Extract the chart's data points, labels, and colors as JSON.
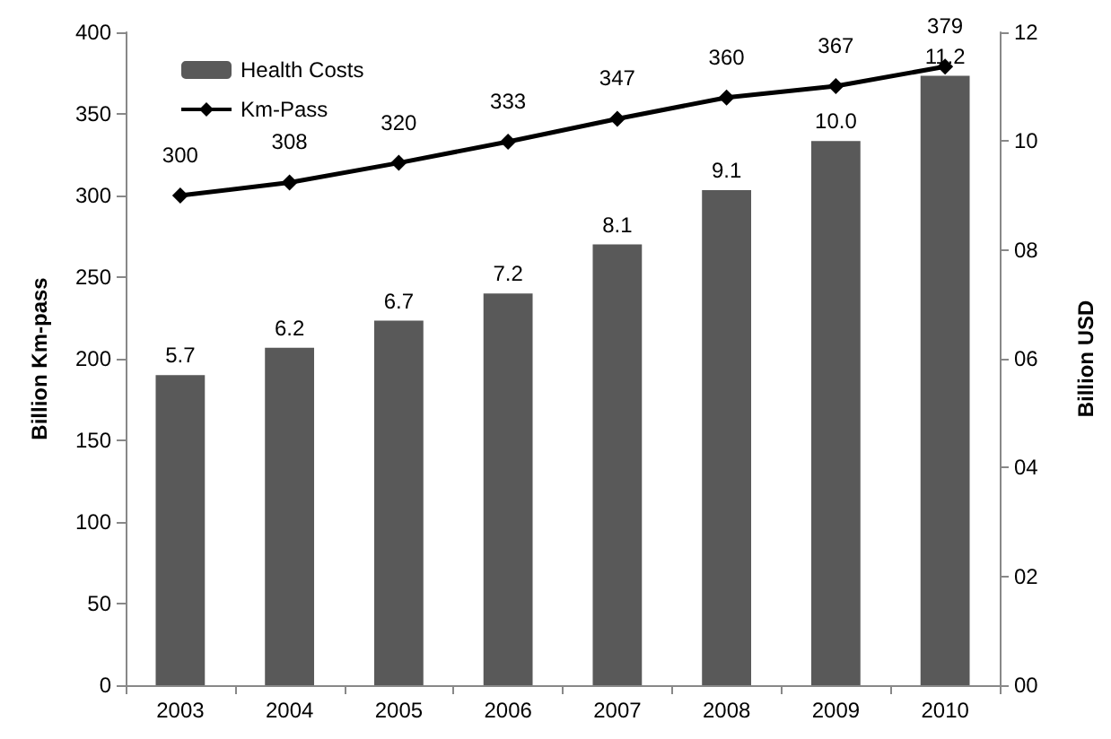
{
  "chart_data": {
    "type": "bar",
    "categories": [
      "2003",
      "2004",
      "2005",
      "2006",
      "2007",
      "2008",
      "2009",
      "2010"
    ],
    "ylabel": "Billion Km-pass",
    "y2label": "Billion USD",
    "ylim": [
      0,
      400
    ],
    "yticks": [
      0,
      50,
      100,
      150,
      200,
      250,
      300,
      350,
      400
    ],
    "y2lim": [
      0,
      12
    ],
    "y2ticks": [
      {
        "value": 0,
        "label": "00"
      },
      {
        "value": 2,
        "label": "02"
      },
      {
        "value": 4,
        "label": "04"
      },
      {
        "value": 6,
        "label": "06"
      },
      {
        "value": 8,
        "label": "08"
      },
      10,
      12
    ],
    "legend": "top left",
    "grid": false,
    "series": [
      {
        "name": "Health Costs",
        "axis": "y2",
        "color": "#595959",
        "values": [
          5.7,
          6.2,
          6.7,
          7.2,
          8.1,
          9.1,
          10.0,
          11.2
        ],
        "value_labels": [
          "5.7",
          "6.2",
          "6.7",
          "7.2",
          "8.1",
          "9.1",
          "10.0",
          "11.2"
        ]
      },
      {
        "name": "Km-Pass",
        "type": "line",
        "axis": "y",
        "color": "#000000",
        "marker": "diamond",
        "line_style": "solid",
        "values": [
          300,
          308,
          320,
          333,
          347,
          360,
          367,
          379
        ],
        "value_labels": [
          "300",
          "308",
          "320",
          "333",
          "347",
          "360",
          "367",
          "379"
        ]
      }
    ]
  }
}
